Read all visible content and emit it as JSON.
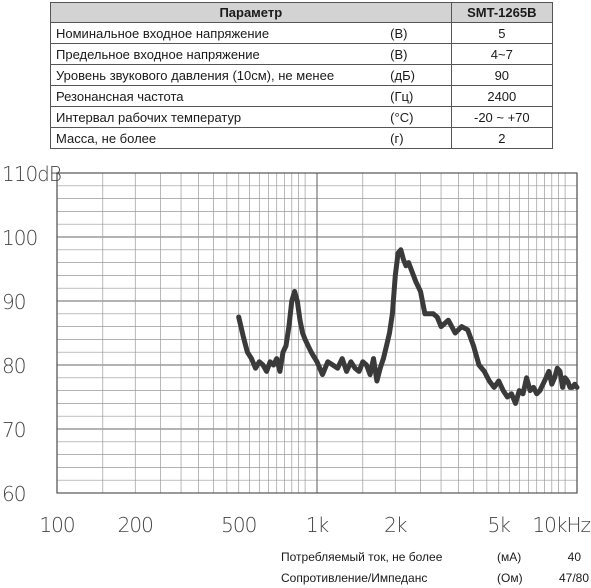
{
  "table": {
    "header": {
      "param": "Параметр",
      "model": "SMT-1265B"
    },
    "rows": [
      {
        "param": "Номинальное входное напряжение",
        "unit": "(В)",
        "value": "5"
      },
      {
        "param": "Предельное входное напряжение",
        "unit": "(В)",
        "value": "4~7"
      },
      {
        "param": "Уровень звукового давления (10см), не менее",
        "unit": "(дБ)",
        "value": "90"
      },
      {
        "param": "Резонансная частота",
        "unit": "(Гц)",
        "value": "2400"
      },
      {
        "param": "Интервал рабочих температур",
        "unit": "(°С)",
        "value": "-20 ~ +70"
      },
      {
        "param": "Масса, не более",
        "unit": "(г)",
        "value": "2"
      }
    ]
  },
  "footer": [
    {
      "param": "Потребляемый ток, не более",
      "unit": "(мА)",
      "value": "40"
    },
    {
      "param": "Сопротивление/Импеданс",
      "unit": "(Ом)",
      "value": "47/80"
    }
  ],
  "chart_data": {
    "type": "line",
    "x_scale": "log",
    "xlim": [
      100,
      10000
    ],
    "ylim": [
      60,
      110
    ],
    "y_ticks": [
      {
        "value": 110,
        "label": "110dB"
      },
      {
        "value": 100,
        "label": "100"
      },
      {
        "value": 90,
        "label": "90"
      },
      {
        "value": 80,
        "label": "80"
      },
      {
        "value": 70,
        "label": "70"
      },
      {
        "value": 60,
        "label": "60"
      }
    ],
    "x_ticks": [
      {
        "value": 100,
        "label": "100"
      },
      {
        "value": 200,
        "label": "200"
      },
      {
        "value": 500,
        "label": "500"
      },
      {
        "value": 1000,
        "label": "1k"
      },
      {
        "value": 2000,
        "label": "2k"
      },
      {
        "value": 5000,
        "label": "5k"
      },
      {
        "value": 10000,
        "label": "10kHz"
      }
    ],
    "grid": true,
    "line_color": "#3a3a3a",
    "series": [
      {
        "x": [
          500,
          520,
          540,
          560,
          580,
          600,
          620,
          640,
          660,
          680,
          700,
          720,
          740,
          760,
          780,
          800,
          820,
          840,
          860,
          880,
          900,
          950,
          1000,
          1050,
          1100,
          1150,
          1200,
          1250,
          1300,
          1350,
          1400,
          1450,
          1500,
          1550,
          1600,
          1650,
          1700,
          1750,
          1800,
          1850,
          1900,
          1950,
          2000,
          2050,
          2100,
          2150,
          2200,
          2250,
          2300,
          2400,
          2500,
          2600,
          2700,
          2800,
          2900,
          3000,
          3200,
          3400,
          3600,
          3800,
          4000,
          4200,
          4400,
          4600,
          4800,
          5000,
          5200,
          5400,
          5600,
          5800,
          6000,
          6200,
          6400,
          6600,
          6800,
          7000,
          7200,
          7400,
          7600,
          7800,
          8000,
          8200,
          8400,
          8600,
          8800,
          9000,
          9200,
          9400,
          9600,
          9800,
          10000
        ],
        "y": [
          87.5,
          84.5,
          82,
          81,
          79.5,
          80.5,
          80,
          79,
          80.5,
          80,
          81,
          79,
          82,
          83,
          86,
          90,
          91.5,
          90,
          87,
          85,
          84,
          82,
          80.5,
          78.5,
          80.5,
          80,
          79.5,
          81,
          79,
          80.5,
          79.5,
          79,
          80.5,
          80,
          78.5,
          81,
          77.5,
          79.5,
          81,
          83,
          85,
          88,
          94,
          97.5,
          98,
          96.5,
          95.5,
          96,
          95,
          93,
          91.5,
          88,
          88,
          88,
          87.5,
          86,
          87,
          85,
          86,
          85.5,
          83,
          80,
          79,
          77.5,
          76.5,
          77.5,
          76,
          75,
          75.5,
          74,
          76,
          75.5,
          78,
          76,
          76.5,
          75.5,
          76,
          77,
          78,
          79,
          77,
          78,
          79.5,
          79,
          76.5,
          78,
          77.5,
          76.5,
          76.5,
          77,
          76.5
        ]
      }
    ]
  }
}
